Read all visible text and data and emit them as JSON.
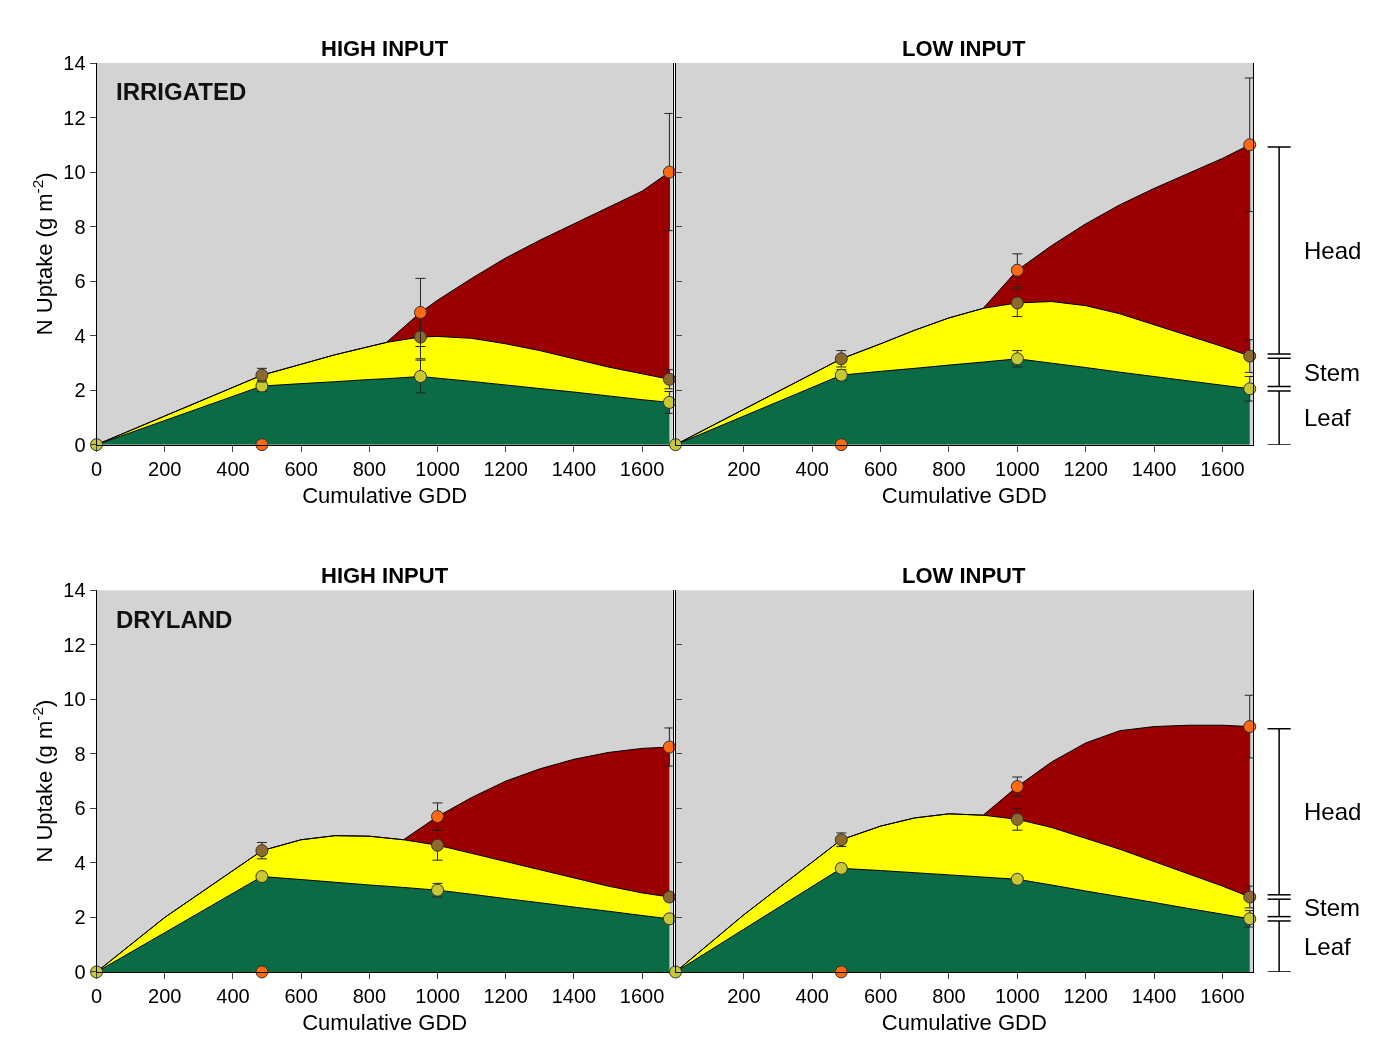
{
  "chart_data": [
    {
      "type": "area",
      "title": "HIGH INPUT",
      "subtitle": "IRRIGATED",
      "xlabel": "Cumulative GDD",
      "ylabel": "N Uptake (g m$^{-2}$)",
      "stacked": true,
      "xlim": [
        0,
        1690
      ],
      "xticks": [
        0,
        200,
        400,
        600,
        800,
        1000,
        1200,
        1400,
        1600
      ],
      "ylim": [
        0,
        14
      ],
      "yticks": [
        0,
        2,
        4,
        6,
        8,
        10,
        12,
        14
      ],
      "x": [
        0,
        485,
        600,
        700,
        800,
        850,
        950,
        1000,
        1100,
        1200,
        1300,
        1400,
        1500,
        1600,
        1680
      ],
      "series": [
        {
          "color": "#0b6b45",
          "values": [
            0,
            2.15,
            2.24,
            2.31,
            2.39,
            2.42,
            2.5,
            2.44,
            2.32,
            2.19,
            2.06,
            1.93,
            1.79,
            1.65,
            1.55
          ]
        },
        {
          "color": "#ffff00",
          "values": [
            0,
            0.4,
            0.71,
            0.99,
            1.21,
            1.33,
            1.45,
            1.53,
            1.58,
            1.51,
            1.39,
            1.22,
            1.06,
            0.95,
            0.85
          ]
        },
        {
          "color": "#9b0000",
          "values": [
            0,
            0,
            0,
            0,
            0,
            0,
            0.9,
            1.33,
            2.2,
            3.15,
            4.05,
            4.95,
            5.85,
            6.7,
            7.6
          ]
        },
        {
          "type": "scatter",
          "marker": "circle",
          "color": "#c8c832",
          "x": [
            0,
            485,
            950,
            1680
          ],
          "values": [
            0,
            2.15,
            2.5,
            1.55
          ],
          "errors": [
            null,
            0.2,
            0.6,
            0.4
          ]
        },
        {
          "type": "scatter",
          "marker": "circle",
          "color": "#8c6a2e",
          "x": [
            485,
            950,
            1680
          ],
          "values": [
            2.55,
            3.95,
            2.4
          ],
          "errors": [
            0.25,
            0.8,
            0.35
          ]
        },
        {
          "type": "scatter",
          "marker": "circle",
          "color": "#ff6a10",
          "x": [
            485,
            950,
            1680
          ],
          "values": [
            0,
            4.85,
            10
          ],
          "errors": [
            null,
            1.25,
            2.15
          ]
        }
      ]
    },
    {
      "type": "area",
      "title": "LOW INPUT",
      "xlabel": "Cumulative GDD",
      "stacked": true,
      "tick_labels": "x",
      "xlim": [
        0,
        1690
      ],
      "xticks": [
        200,
        400,
        600,
        800,
        1000,
        1200,
        1400,
        1600
      ],
      "ylim": [
        0,
        14
      ],
      "yticks": [
        0,
        2,
        4,
        6,
        8,
        10,
        12,
        14
      ],
      "x": [
        0,
        200,
        485,
        600,
        700,
        800,
        900,
        1000,
        1100,
        1200,
        1300,
        1400,
        1500,
        1600,
        1680
      ],
      "annotations": [
        "Head",
        "Stem",
        "Leaf"
      ],
      "series": [
        {
          "color": "#0b6b45",
          "values": [
            0,
            1.05,
            2.55,
            2.69,
            2.8,
            2.92,
            3.03,
            3.15,
            2.99,
            2.83,
            2.66,
            2.5,
            2.34,
            2.18,
            2.05
          ]
        },
        {
          "color": "#ffff00",
          "values": [
            0,
            0.25,
            0.6,
            1.01,
            1.4,
            1.73,
            1.97,
            2.05,
            2.26,
            2.27,
            2.14,
            1.9,
            1.66,
            1.42,
            1.2
          ]
        },
        {
          "color": "#9b0000",
          "values": [
            0,
            0,
            0,
            0,
            0,
            0,
            0,
            1.2,
            2.05,
            3.0,
            4.0,
            5.0,
            5.95,
            6.9,
            7.75
          ]
        },
        {
          "type": "scatter",
          "marker": "circle",
          "color": "#c8c832",
          "x": [
            0,
            485,
            1000,
            1680
          ],
          "values": [
            0,
            2.55,
            3.15,
            2.05
          ],
          "errors": [
            null,
            0.2,
            0.3,
            0.45
          ]
        },
        {
          "type": "scatter",
          "marker": "circle",
          "color": "#8c6a2e",
          "x": [
            485,
            1000,
            1680
          ],
          "values": [
            3.15,
            5.2,
            3.25
          ],
          "errors": [
            0.3,
            0.5,
            0.6
          ]
        },
        {
          "type": "scatter",
          "marker": "circle",
          "color": "#ff6a10",
          "x": [
            485,
            1000,
            1680
          ],
          "values": [
            0,
            6.4,
            11.0
          ],
          "errors": [
            null,
            0.6,
            2.45
          ]
        }
      ]
    },
    {
      "type": "area",
      "title": "HIGH INPUT",
      "subtitle": "DRYLAND",
      "xlabel": "Cumulative GDD",
      "ylabel": "N Uptake (g m$^{-2}$)",
      "stacked": true,
      "xlim": [
        0,
        1690
      ],
      "xticks": [
        0,
        200,
        400,
        600,
        800,
        1000,
        1200,
        1400,
        1600
      ],
      "ylim": [
        0,
        14
      ],
      "yticks": [
        0,
        2,
        4,
        6,
        8,
        10,
        12,
        14
      ],
      "x": [
        0,
        200,
        485,
        600,
        700,
        800,
        900,
        1000,
        1100,
        1200,
        1300,
        1400,
        1500,
        1600,
        1680
      ],
      "series": [
        {
          "color": "#0b6b45",
          "values": [
            0,
            1.44,
            3.5,
            3.39,
            3.29,
            3.19,
            3.1,
            3.0,
            2.85,
            2.69,
            2.54,
            2.38,
            2.23,
            2.07,
            1.95
          ]
        },
        {
          "color": "#ffff00",
          "values": [
            0,
            0.56,
            0.95,
            1.46,
            1.71,
            1.79,
            1.75,
            1.65,
            1.5,
            1.36,
            1.21,
            1.07,
            0.92,
            0.83,
            0.8
          ]
        },
        {
          "color": "#9b0000",
          "values": [
            0,
            0,
            0,
            0,
            0,
            0,
            0,
            1.05,
            2.05,
            2.95,
            3.7,
            4.35,
            4.9,
            5.3,
            5.5
          ]
        },
        {
          "type": "scatter",
          "marker": "circle",
          "color": "#c8c832",
          "x": [
            0,
            485,
            1000,
            1680
          ],
          "values": [
            0,
            3.5,
            3.0,
            1.95
          ],
          "errors": [
            null,
            null,
            0.25,
            null
          ]
        },
        {
          "type": "scatter",
          "marker": "circle",
          "color": "#8c6a2e",
          "x": [
            485,
            1000,
            1680
          ],
          "values": [
            4.45,
            4.65,
            2.75
          ],
          "errors": [
            0.3,
            0.55,
            null
          ]
        },
        {
          "type": "scatter",
          "marker": "circle",
          "color": "#ff6a10",
          "x": [
            485,
            1000,
            1680
          ],
          "values": [
            0,
            5.7,
            8.25
          ],
          "errors": [
            null,
            0.5,
            0.7
          ]
        }
      ]
    },
    {
      "type": "area",
      "title": "LOW INPUT",
      "xlabel": "Cumulative GDD",
      "stacked": true,
      "tick_labels": "x",
      "xlim": [
        0,
        1690
      ],
      "xticks": [
        200,
        400,
        600,
        800,
        1000,
        1200,
        1400,
        1600
      ],
      "ylim": [
        0,
        14
      ],
      "yticks": [
        0,
        2,
        4,
        6,
        8,
        10,
        12,
        14
      ],
      "x": [
        0,
        200,
        485,
        600,
        700,
        800,
        900,
        1000,
        1100,
        1200,
        1300,
        1400,
        1500,
        1600,
        1680
      ],
      "annotations": [
        "Head",
        "Stem",
        "Leaf"
      ],
      "series": [
        {
          "color": "#0b6b45",
          "values": [
            0,
            1.57,
            3.8,
            3.72,
            3.64,
            3.56,
            3.48,
            3.4,
            3.19,
            2.97,
            2.76,
            2.55,
            2.33,
            2.12,
            1.95
          ]
        },
        {
          "color": "#ffff00",
          "values": [
            0,
            0.53,
            1.05,
            1.63,
            2.01,
            2.24,
            2.27,
            2.2,
            2.11,
            1.93,
            1.74,
            1.5,
            1.27,
            1.03,
            0.8
          ]
        },
        {
          "color": "#9b0000",
          "values": [
            0,
            0,
            0,
            0,
            0,
            0,
            0,
            1.2,
            2.4,
            3.5,
            4.35,
            4.95,
            5.45,
            5.9,
            6.25
          ]
        },
        {
          "type": "scatter",
          "marker": "circle",
          "color": "#c8c832",
          "x": [
            0,
            485,
            1000,
            1680
          ],
          "values": [
            0,
            3.8,
            3.4,
            1.95
          ],
          "errors": [
            null,
            null,
            null,
            0.3
          ]
        },
        {
          "type": "scatter",
          "marker": "circle",
          "color": "#8c6a2e",
          "x": [
            485,
            1000,
            1680
          ],
          "values": [
            4.85,
            5.6,
            2.75
          ],
          "errors": [
            0.25,
            0.4,
            0.4
          ]
        },
        {
          "type": "scatter",
          "marker": "circle",
          "color": "#ff6a10",
          "x": [
            485,
            1000,
            1680
          ],
          "values": [
            0,
            6.8,
            9.0
          ],
          "errors": [
            null,
            0.35,
            1.15
          ]
        }
      ]
    }
  ]
}
